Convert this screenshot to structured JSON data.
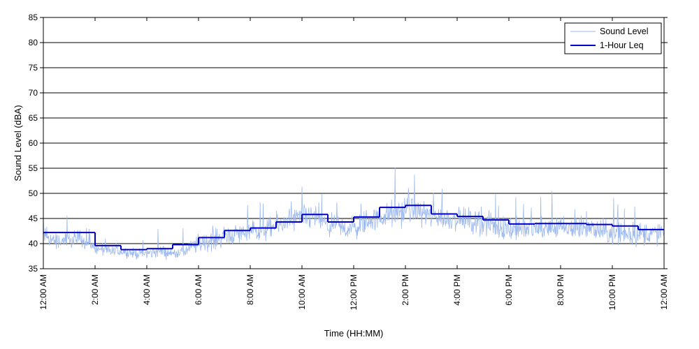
{
  "chart_data": {
    "type": "line",
    "xlabel": "Time (HH:MM)",
    "ylabel": "Sound Level (dBA)",
    "ylim": [
      35,
      85
    ],
    "xlim": [
      0,
      24
    ],
    "grid": "horizontal",
    "legend_position": "top-right",
    "yticks": [
      35,
      40,
      45,
      50,
      55,
      60,
      65,
      70,
      75,
      80,
      85
    ],
    "xticks": [
      {
        "hour": 0,
        "label": "12:00 AM"
      },
      {
        "hour": 2,
        "label": "2:00 AM"
      },
      {
        "hour": 4,
        "label": "4:00 AM"
      },
      {
        "hour": 6,
        "label": "6:00 AM"
      },
      {
        "hour": 8,
        "label": "8:00 AM"
      },
      {
        "hour": 10,
        "label": "10:00 AM"
      },
      {
        "hour": 12,
        "label": "12:00 PM"
      },
      {
        "hour": 14,
        "label": "2:00 PM"
      },
      {
        "hour": 16,
        "label": "4:00 PM"
      },
      {
        "hour": 18,
        "label": "6:00 PM"
      },
      {
        "hour": 20,
        "label": "8:00 PM"
      },
      {
        "hour": 22,
        "label": "10:00 PM"
      },
      {
        "hour": 24,
        "label": "12:00 AM"
      }
    ],
    "series": [
      {
        "name": "Sound Level",
        "color": "#9db9ef",
        "hours": [
          0,
          0.5,
          1,
          1.5,
          2,
          2.5,
          3,
          3.5,
          4,
          4.5,
          5,
          5.5,
          6,
          6.5,
          7,
          7.5,
          8,
          8.5,
          9,
          9.5,
          10,
          10.5,
          11,
          11.5,
          12,
          12.5,
          13,
          13.5,
          14,
          14.5,
          15,
          15.5,
          16,
          16.5,
          17,
          17.5,
          18,
          18.5,
          19,
          19.5,
          20,
          20.5,
          21,
          21.5,
          22,
          22.5,
          23,
          23.5,
          24
        ],
        "mean_values": [
          41.5,
          40.5,
          40.5,
          41,
          39,
          38.5,
          38.5,
          38,
          38,
          38.5,
          38,
          38.5,
          40,
          40.5,
          41.5,
          42,
          42.5,
          42.5,
          43.5,
          44.5,
          45,
          45.5,
          43.5,
          43,
          43,
          44.5,
          45,
          46,
          46.5,
          46.5,
          45.5,
          45,
          45,
          44.5,
          44,
          43.5,
          43,
          43,
          43,
          43,
          43,
          43,
          43,
          42.5,
          42,
          42,
          42,
          42,
          42
        ],
        "typical_spread": [
          2.5,
          2.5,
          2.5,
          3,
          2,
          1.5,
          1.5,
          1.5,
          1.5,
          2,
          1.5,
          2,
          3,
          3,
          3,
          3,
          3,
          3,
          3.5,
          3.5,
          4,
          4,
          3.5,
          3.5,
          3.5,
          3.5,
          3.5,
          4,
          4,
          3.5,
          3.5,
          3.5,
          3.5,
          3.5,
          3.5,
          3.5,
          3.5,
          3.5,
          3.5,
          3.5,
          3.5,
          3.5,
          3.5,
          3.5,
          3.5,
          3.5,
          3.5,
          3.5,
          3.5
        ]
      },
      {
        "name": "1-Hour Leq",
        "color": "#0000cc",
        "step": "post",
        "hours": [
          0,
          1,
          2,
          3,
          4,
          5,
          6,
          7,
          8,
          9,
          10,
          11,
          12,
          13,
          14,
          15,
          16,
          17,
          18,
          19,
          20,
          21,
          22,
          23
        ],
        "values": [
          42.2,
          42.2,
          39.6,
          38.8,
          39.0,
          39.8,
          41.2,
          42.6,
          43.1,
          44.3,
          45.8,
          44.3,
          45.3,
          47.2,
          47.6,
          45.9,
          45.4,
          44.7,
          43.9,
          44.0,
          44.0,
          43.8,
          43.5,
          42.8
        ]
      }
    ]
  }
}
